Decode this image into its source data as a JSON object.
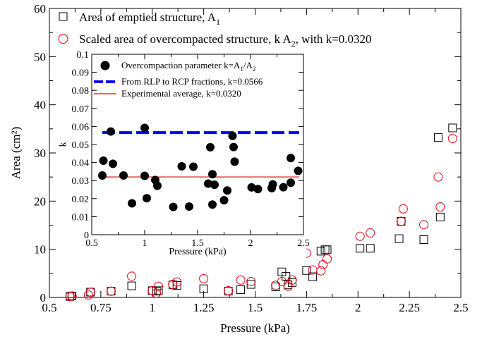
{
  "chart_data": [
    {
      "id": "main",
      "type": "scatter",
      "title": "",
      "xlabel": "Pressure (kPa)",
      "ylabel": "Area (cm²)",
      "xlim": [
        0.5,
        2.5
      ],
      "ylim": [
        0,
        60
      ],
      "x_ticks": [
        "0.5",
        "0.75",
        "1",
        "1.25",
        "1.5",
        "1.75",
        "2",
        "2.25",
        "2.5"
      ],
      "y_ticks": [
        "0",
        "10",
        "20",
        "30",
        "40",
        "50",
        "60"
      ],
      "grid": false,
      "legend_position": "top",
      "legend": [
        {
          "label": "Area of emptied structure, A",
          "subscript": "1",
          "tail": "",
          "marker": "square",
          "color": "#000000"
        },
        {
          "label": "Scaled area of overcompacted structure, k A",
          "subscript": "2",
          "tail": ", with k=0.0320",
          "marker": "circle",
          "color": "#e8000b"
        }
      ],
      "series": [
        {
          "name": "Area of emptied structure, A1",
          "marker": "square",
          "color": "#000000",
          "points": [
            [
              0.6,
              0.2
            ],
            [
              0.61,
              0.3
            ],
            [
              0.7,
              1.1
            ],
            [
              0.8,
              1.3
            ],
            [
              0.9,
              2.4
            ],
            [
              1.0,
              1.4
            ],
            [
              1.02,
              1.3
            ],
            [
              1.03,
              1.4
            ],
            [
              1.1,
              2.6
            ],
            [
              1.12,
              2.5
            ],
            [
              1.25,
              1.8
            ],
            [
              1.37,
              1.3
            ],
            [
              1.43,
              1.6
            ],
            [
              1.48,
              2.7
            ],
            [
              1.6,
              2.2
            ],
            [
              1.63,
              5.3
            ],
            [
              1.65,
              4.4
            ],
            [
              1.66,
              2.6
            ],
            [
              1.68,
              3.1
            ],
            [
              1.75,
              5.6
            ],
            [
              1.78,
              4.3
            ],
            [
              1.82,
              9.6
            ],
            [
              1.84,
              9.9
            ],
            [
              1.85,
              9.9
            ],
            [
              2.01,
              10.2
            ],
            [
              2.06,
              10.2
            ],
            [
              2.2,
              12.2
            ],
            [
              2.21,
              15.8
            ],
            [
              2.32,
              12.0
            ],
            [
              2.39,
              33.2
            ],
            [
              2.4,
              16.7
            ],
            [
              2.46,
              35.2
            ]
          ]
        },
        {
          "name": "Scaled area of overcompacted structure, k A2, with k=0.0320",
          "marker": "circle",
          "color": "#e8000b",
          "points": [
            [
              0.6,
              0.2
            ],
            [
              0.61,
              0.3
            ],
            [
              0.69,
              0.5
            ],
            [
              0.7,
              1.1
            ],
            [
              0.8,
              1.3
            ],
            [
              0.9,
              4.4
            ],
            [
              1.0,
              1.4
            ],
            [
              1.02,
              0.9
            ],
            [
              1.03,
              2.3
            ],
            [
              1.1,
              2.7
            ],
            [
              1.12,
              3.2
            ],
            [
              1.25,
              3.9
            ],
            [
              1.37,
              1.4
            ],
            [
              1.43,
              3.6
            ],
            [
              1.48,
              3.3
            ],
            [
              1.6,
              2.5
            ],
            [
              1.63,
              3.3
            ],
            [
              1.65,
              8.5
            ],
            [
              1.66,
              2.3
            ],
            [
              1.68,
              3.6
            ],
            [
              1.75,
              9.2
            ],
            [
              1.78,
              5.7
            ],
            [
              1.82,
              5.5
            ],
            [
              1.83,
              6.8
            ],
            [
              1.85,
              8.0
            ],
            [
              2.01,
              12.7
            ],
            [
              2.06,
              13.4
            ],
            [
              2.21,
              15.8
            ],
            [
              2.22,
              18.4
            ],
            [
              2.32,
              15.1
            ],
            [
              2.39,
              25.0
            ],
            [
              2.4,
              18.8
            ],
            [
              2.46,
              33.0
            ]
          ]
        }
      ]
    },
    {
      "id": "inset",
      "type": "scatter",
      "title": "",
      "xlabel": "Pressure (kPa)",
      "ylabel": "k",
      "xlim": [
        0.5,
        2.5
      ],
      "ylim": [
        0,
        0.1
      ],
      "x_ticks": [
        "0.5",
        "1",
        "1.5",
        "2",
        "2.5"
      ],
      "y_ticks": [
        "0",
        "0.01",
        "0.02",
        "0.03",
        "0.04",
        "0.05",
        "0.06",
        "0.07",
        "0.08",
        "0.09",
        "0.1"
      ],
      "grid": false,
      "legend_position": "top",
      "legend": [
        {
          "label": "Overcompaction parameter k=A",
          "sub1": "1",
          "mid": "/A",
          "sub2": "2",
          "marker": "filled-circle",
          "color": "#000000"
        },
        {
          "label": "From RLP to RCP fractions, k=0.0566",
          "marker": "dashed-line",
          "color": "#0000ff"
        },
        {
          "label": "Experimental average, k=0.0320",
          "marker": "solid-line",
          "color": "#e8000b"
        }
      ],
      "series": [
        {
          "name": "Overcompaction parameter k=A1/A2",
          "marker": "filled-circle",
          "color": "#000000",
          "points": [
            [
              0.6,
              0.0328
            ],
            [
              0.61,
              0.041
            ],
            [
              0.68,
              0.0572
            ],
            [
              0.7,
              0.0393
            ],
            [
              0.8,
              0.0328
            ],
            [
              0.88,
              0.0174
            ],
            [
              1.0,
              0.0592
            ],
            [
              1.0,
              0.0326
            ],
            [
              1.02,
              0.0202
            ],
            [
              1.1,
              0.0303
            ],
            [
              1.12,
              0.0271
            ],
            [
              1.27,
              0.0154
            ],
            [
              1.35,
              0.0379
            ],
            [
              1.42,
              0.0156
            ],
            [
              1.46,
              0.0377
            ],
            [
              1.6,
              0.0283
            ],
            [
              1.62,
              0.0485
            ],
            [
              1.64,
              0.0335
            ],
            [
              1.64,
              0.0167
            ],
            [
              1.66,
              0.0277
            ],
            [
              1.75,
              0.0191
            ],
            [
              1.78,
              0.0245
            ],
            [
              1.83,
              0.0548
            ],
            [
              1.84,
              0.0486
            ],
            [
              1.85,
              0.0405
            ],
            [
              2.01,
              0.0262
            ],
            [
              2.07,
              0.0253
            ],
            [
              2.2,
              0.0258
            ],
            [
              2.21,
              0.0279
            ],
            [
              2.31,
              0.0263
            ],
            [
              2.38,
              0.0425
            ],
            [
              2.38,
              0.0288
            ],
            [
              2.45,
              0.0354
            ]
          ]
        },
        {
          "name": "From RLP to RCP fractions, k=0.0566",
          "type": "line",
          "style": "dashed",
          "color": "#0000ff",
          "x": [
            0.6,
            2.46
          ],
          "y": [
            0.0566,
            0.0566
          ]
        },
        {
          "name": "Experimental average, k=0.0320",
          "type": "line",
          "style": "solid",
          "color": "#e8000b",
          "x": [
            0.6,
            2.46
          ],
          "y": [
            0.032,
            0.032
          ]
        }
      ]
    }
  ]
}
